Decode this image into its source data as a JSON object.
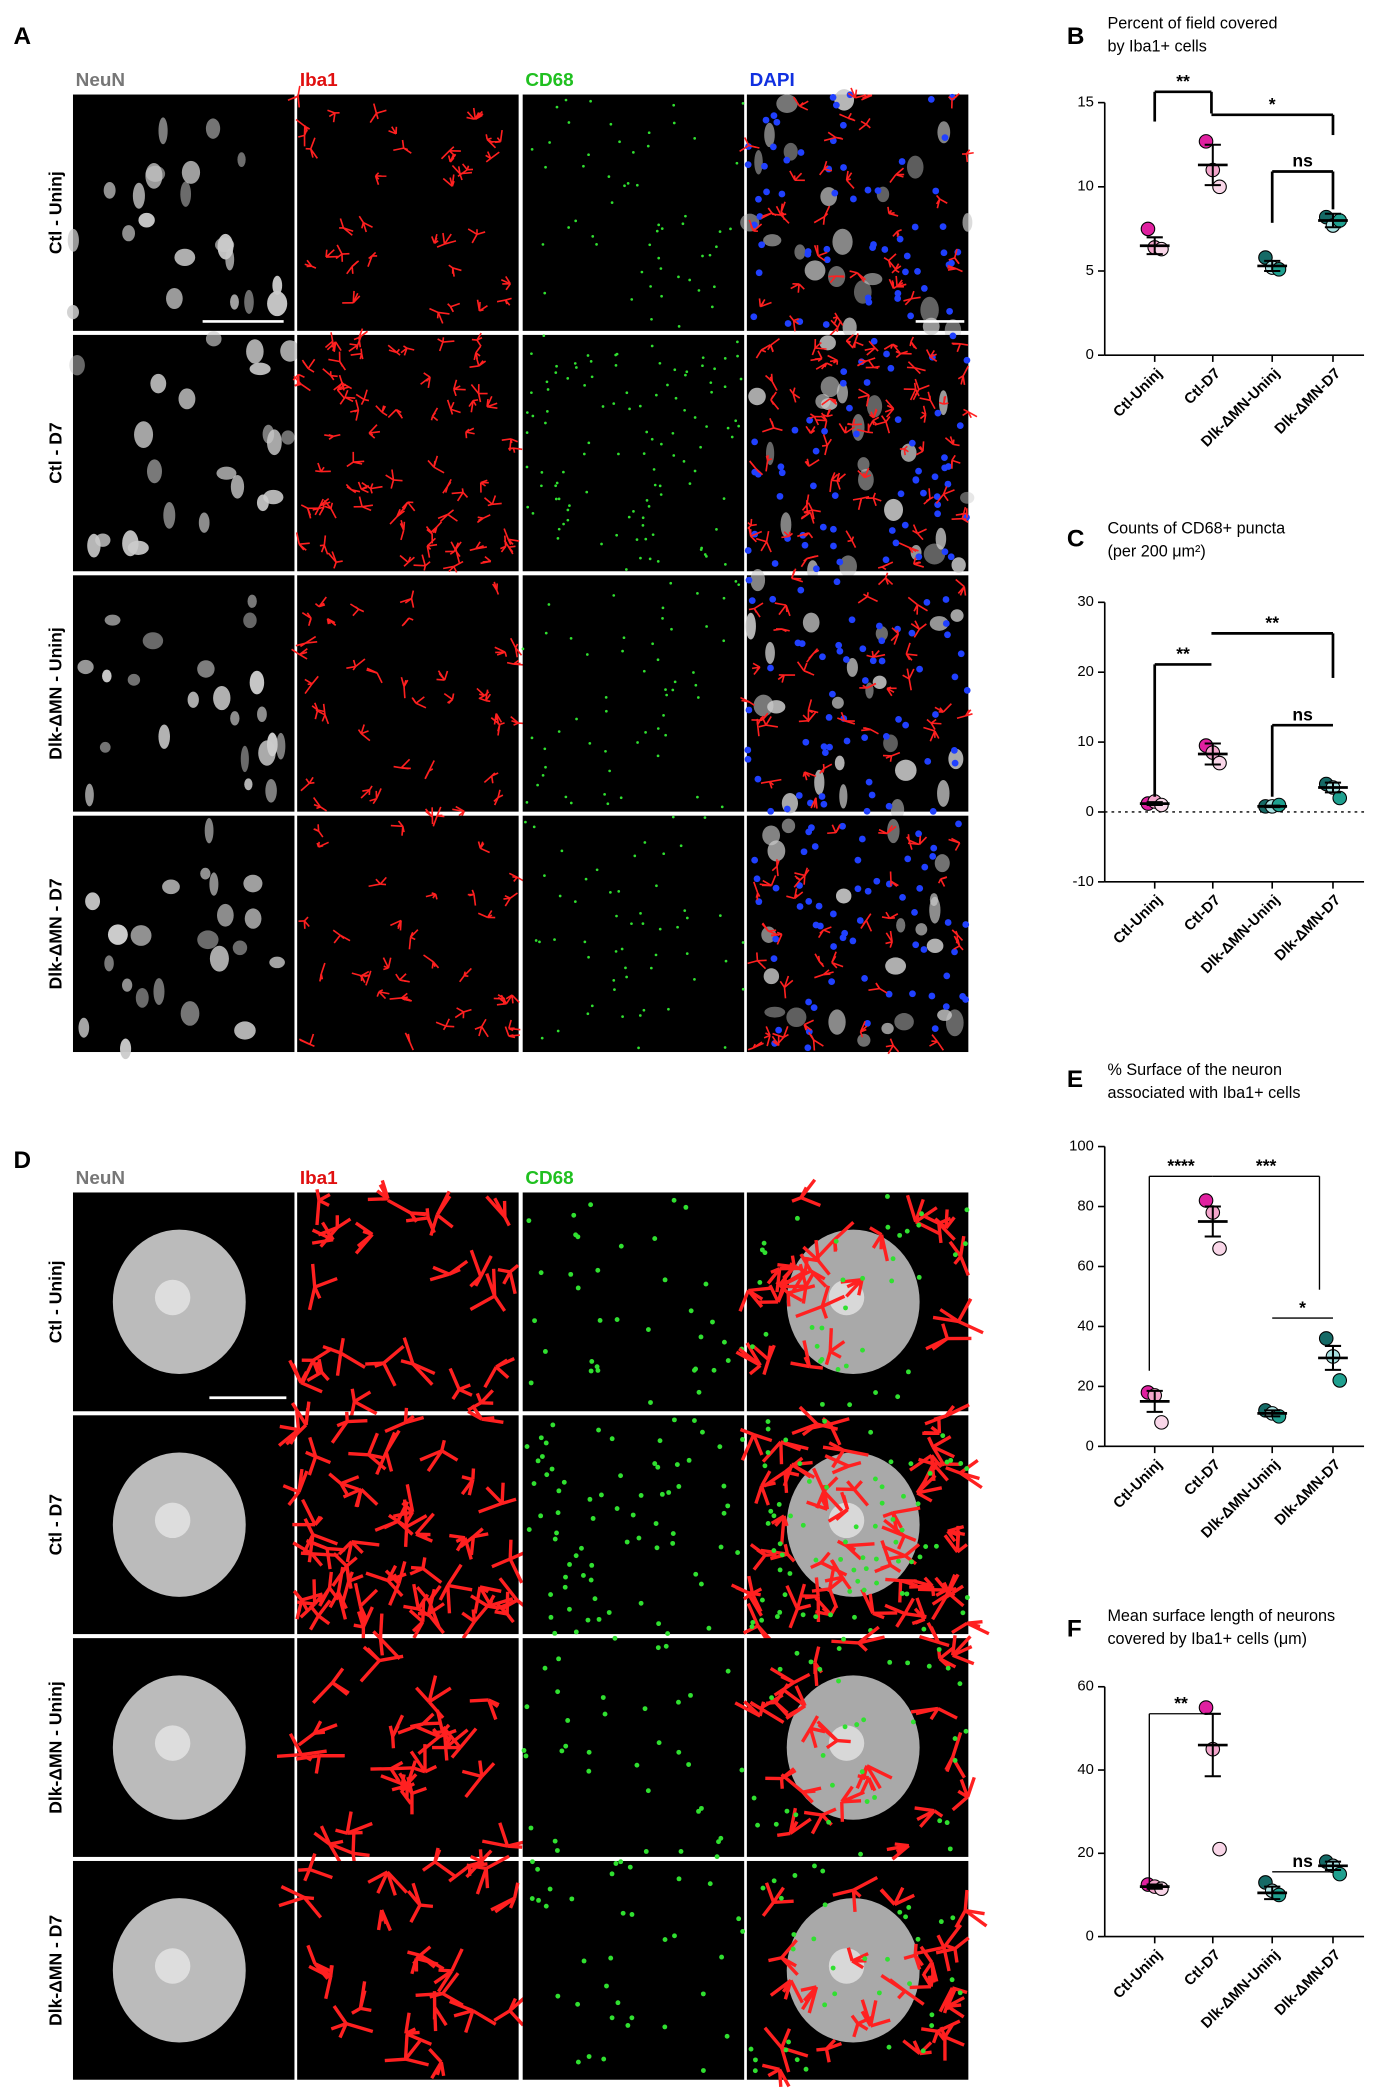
{
  "panel_letters": [
    "A",
    "B",
    "C",
    "D",
    "E",
    "F"
  ],
  "panel_A": {
    "columns": [
      "NeuN",
      "Iba1",
      "CD68",
      "DAPI"
    ],
    "rows": [
      "Ctl - Uninj",
      "Ctl - D7",
      "Dlk-ΔMN - Uninj",
      "Dlk-ΔMN - D7"
    ]
  },
  "panel_D": {
    "columns": [
      "NeuN",
      "Iba1",
      "CD68"
    ],
    "rows": [
      "Ctl - Uninj",
      "Ctl - D7",
      "Dlk-ΔMN - Uninj",
      "Dlk-ΔMN - D7"
    ]
  },
  "chart_data": [
    {
      "type": "scatter",
      "title": [
        "Percent of field covered",
        "by Iba1+ cells"
      ],
      "categories": [
        "Ctl-Uninj",
        "Ctl-D7",
        "Dlk-ΔMN-Uninj",
        "Dlk-ΔMN-D7"
      ],
      "means": [
        6.5,
        11.3,
        5.3,
        8.0
      ],
      "sems": [
        0.5,
        1.2,
        0.3,
        0.4
      ],
      "points": [
        [
          7.5,
          6.4,
          6.3
        ],
        [
          12.7,
          11.0,
          10.0
        ],
        [
          5.8,
          5.2,
          5.1
        ],
        [
          8.2,
          7.7,
          8.0
        ]
      ],
      "point_colors": [
        [
          "#e020a0",
          "#f4a6cc",
          "#f9d6e8"
        ],
        [
          "#e020a0",
          "#f4a6cc",
          "#f9d6e8"
        ],
        [
          "#156a66",
          "#a8e2e2",
          "#1fa08f"
        ],
        [
          "#156a66",
          "#a8e2e2",
          "#1fa08f"
        ]
      ],
      "ylim": [
        0,
        15
      ],
      "yticks": [
        0,
        5,
        10,
        15
      ],
      "zero_line": false,
      "annotations": [
        "**",
        "*",
        "ns"
      ]
    },
    {
      "type": "scatter",
      "title": [
        "Counts of CD68+ puncta",
        "(per 200 μm²)"
      ],
      "categories": [
        "Ctl-Uninj",
        "Ctl-D7",
        "Dlk-ΔMN-Uninj",
        "Dlk-ΔMN-D7"
      ],
      "means": [
        1.2,
        8.3,
        0.8,
        3.5
      ],
      "sems": [
        0.2,
        1.5,
        0.1,
        0.7
      ],
      "points": [
        [
          1.2,
          1.5,
          1.0
        ],
        [
          9.5,
          8.5,
          7.0
        ],
        [
          0.8,
          0.8,
          1.0
        ],
        [
          4.0,
          3.5,
          2.0
        ]
      ],
      "point_colors": [
        [
          "#e020a0",
          "#f4a6cc",
          "#f9d6e8"
        ],
        [
          "#e020a0",
          "#f4a6cc",
          "#f9d6e8"
        ],
        [
          "#156a66",
          "#a8e2e2",
          "#1fa08f"
        ],
        [
          "#156a66",
          "#a8e2e2",
          "#1fa08f"
        ]
      ],
      "ylim": [
        -10,
        30
      ],
      "yticks": [
        -10,
        0,
        10,
        20,
        30
      ],
      "zero_line": true,
      "annotations": [
        "**",
        "**",
        "ns"
      ]
    },
    {
      "type": "scatter",
      "title": [
        "% Surface of the neuron",
        "associated with Iba1+ cells"
      ],
      "categories": [
        "Ctl-Uninj",
        "Ctl-D7",
        "Dlk-ΔMN-Uninj",
        "Dlk-ΔMN-D7"
      ],
      "means": [
        15,
        75,
        11,
        29.5
      ],
      "sems": [
        3.5,
        5,
        1,
        4
      ],
      "points": [
        [
          18,
          17,
          8
        ],
        [
          82,
          78,
          66
        ],
        [
          12,
          11,
          10
        ],
        [
          36,
          30,
          22
        ]
      ],
      "point_colors": [
        [
          "#e020a0",
          "#f4a6cc",
          "#f9d6e8"
        ],
        [
          "#e020a0",
          "#f4a6cc",
          "#f9d6e8"
        ],
        [
          "#156a66",
          "#a8e2e2",
          "#1fa08f"
        ],
        [
          "#156a66",
          "#a8e2e2",
          "#1fa08f"
        ]
      ],
      "ylim": [
        0,
        100
      ],
      "yticks": [
        0,
        20,
        40,
        60,
        80,
        100
      ],
      "zero_line": false,
      "annotations": [
        "****",
        "***",
        "*"
      ]
    },
    {
      "type": "scatter",
      "title": [
        "Mean surface length of neurons",
        "covered by Iba1+ cells (μm)"
      ],
      "categories": [
        "Ctl-Uninj",
        "Ctl-D7",
        "Dlk-ΔMN-Uninj",
        "Dlk-ΔMN-D7"
      ],
      "means": [
        12,
        46,
        10.5,
        17
      ],
      "sems": [
        0.5,
        7.5,
        1.5,
        1
      ],
      "points": [
        [
          12.5,
          12,
          11.5
        ],
        [
          55,
          45,
          21
        ],
        [
          13,
          11,
          10
        ],
        [
          18,
          17,
          15
        ]
      ],
      "point_colors": [
        [
          "#e020a0",
          "#f4a6cc",
          "#f9d6e8"
        ],
        [
          "#e020a0",
          "#f4a6cc",
          "#f9d6e8"
        ],
        [
          "#156a66",
          "#a8e2e2",
          "#1fa08f"
        ],
        [
          "#156a66",
          "#a8e2e2",
          "#1fa08f"
        ]
      ],
      "ylim": [
        0,
        60
      ],
      "yticks": [
        0,
        20,
        40,
        60
      ],
      "zero_line": false,
      "annotations": [
        "**",
        "ns"
      ]
    }
  ]
}
